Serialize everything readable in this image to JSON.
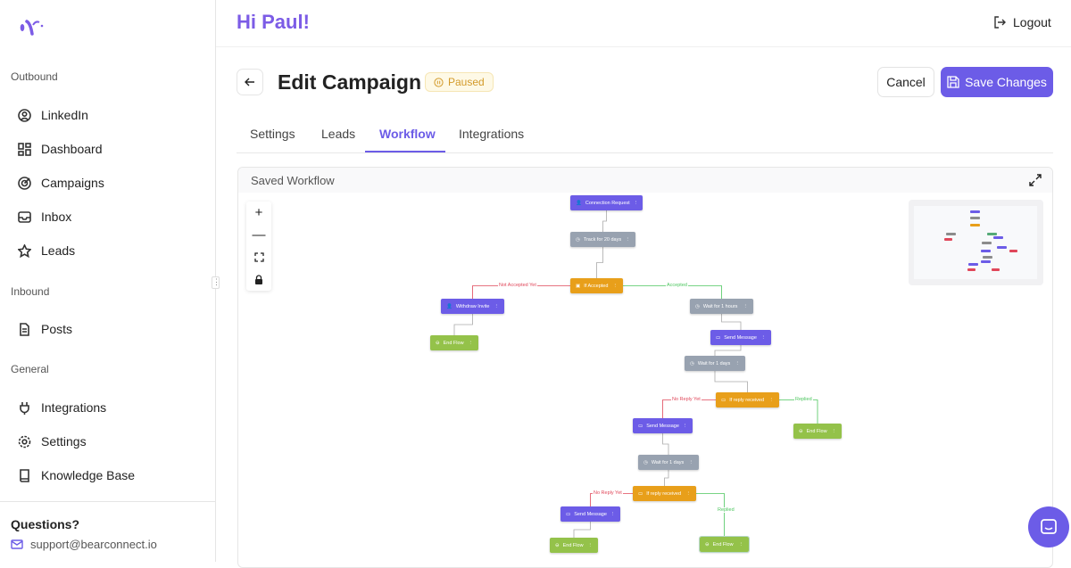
{
  "sidebar": {
    "sections": [
      {
        "title": "Outbound",
        "items": [
          "LinkedIn",
          "Dashboard",
          "Campaigns",
          "Inbox",
          "Leads"
        ]
      },
      {
        "title": "Inbound",
        "items": [
          "Posts"
        ]
      },
      {
        "title": "General",
        "items": [
          "Integrations",
          "Settings",
          "Knowledge Base"
        ]
      }
    ],
    "questions": "Questions?",
    "support_email": "support@bearconnect.io"
  },
  "header": {
    "greeting": "Hi Paul!",
    "logout": "Logout"
  },
  "page": {
    "title": "Edit Campaign",
    "status": "Paused",
    "cancel": "Cancel",
    "save": "Save Changes"
  },
  "tabs": [
    "Settings",
    "Leads",
    "Workflow",
    "Integrations"
  ],
  "active_tab": "Workflow",
  "workflow": {
    "title": "Saved Workflow",
    "zoom_controls": [
      "+",
      "—",
      "fit",
      "lock"
    ],
    "nodes": [
      {
        "label": "Connection Request",
        "kind": "action"
      },
      {
        "label": "Track for 20 days",
        "kind": "wait"
      },
      {
        "label": "If Accepted",
        "kind": "condition"
      },
      {
        "label": "Withdraw Invite",
        "kind": "action"
      },
      {
        "label": "End Flow",
        "kind": "end"
      },
      {
        "label": "Wait for 1 hours",
        "kind": "wait"
      },
      {
        "label": "Send Message",
        "kind": "action"
      },
      {
        "label": "Wait for 1 days",
        "kind": "wait"
      },
      {
        "label": "If reply received",
        "kind": "condition"
      },
      {
        "label": "End Flow",
        "kind": "end"
      },
      {
        "label": "Send Message",
        "kind": "action"
      },
      {
        "label": "Wait for 1 days",
        "kind": "wait"
      },
      {
        "label": "If reply received",
        "kind": "condition"
      },
      {
        "label": "Send Message",
        "kind": "action"
      },
      {
        "label": "End Flow",
        "kind": "end"
      },
      {
        "label": "End Flow",
        "kind": "end"
      }
    ],
    "edge_labels": [
      "Not Accepted Yet",
      "Accepted",
      "No Reply Yet",
      "Replied",
      "No Reply Yet",
      "Replied"
    ]
  },
  "colors": {
    "accent": "#6c5ce7",
    "action": "#6c5ce7",
    "wait": "#98a2b0",
    "condition": "#e89f1a",
    "end": "#94c24a",
    "negative": "#e0475a",
    "positive": "#4cc65e",
    "paused": "#d39a2a"
  }
}
